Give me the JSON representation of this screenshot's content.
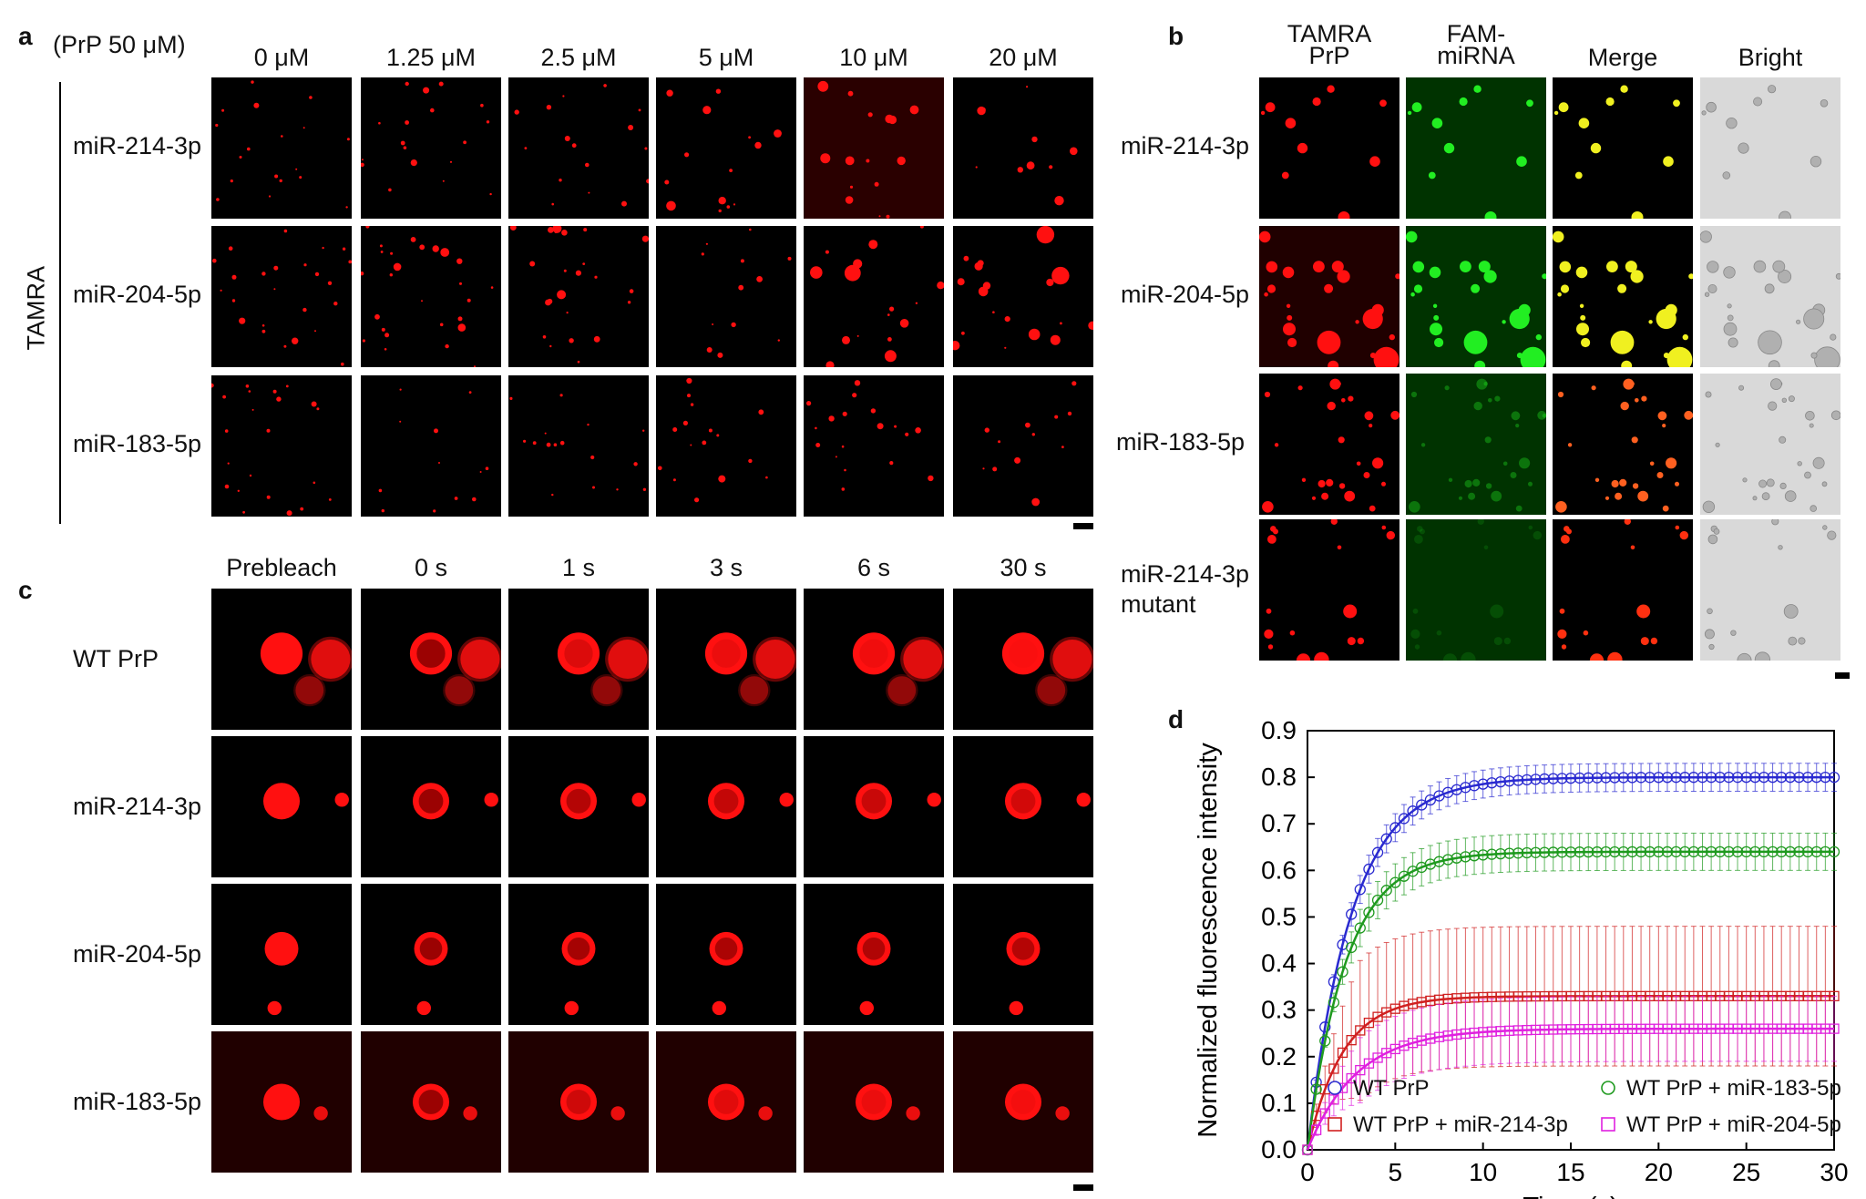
{
  "panel_a": {
    "label": "a",
    "condition": "(PrP 50 μM)",
    "side_label": "TAMRA",
    "columns": [
      "0 μM",
      "1.25 μM",
      "2.5 μM",
      "5 μM",
      "10 μM",
      "20 μM"
    ],
    "rows": [
      "miR-214-3p",
      "miR-204-5p",
      "miR-183-5p"
    ]
  },
  "panel_b": {
    "label": "b",
    "columns": [
      {
        "line1": "TAMRA",
        "line2": "PrP"
      },
      {
        "line1": "FAM-",
        "line2": "miRNA"
      },
      {
        "line1": "Merge",
        "line2": ""
      },
      {
        "line1": "Bright",
        "line2": ""
      }
    ],
    "rows": [
      {
        "line1": "miR-214-3p",
        "line2": ""
      },
      {
        "line1": "miR-204-5p",
        "line2": ""
      },
      {
        "line1": "miR-183-5p",
        "line2": ""
      },
      {
        "line1": "miR-214-3p",
        "line2": "mutant"
      }
    ]
  },
  "panel_c": {
    "label": "c",
    "columns": [
      "Prebleach",
      "0 s",
      "1 s",
      "3 s",
      "6 s",
      "30 s"
    ],
    "rows": [
      "WT PrP",
      "miR-214-3p",
      "miR-204-5p",
      "miR-183-5p"
    ]
  },
  "panel_d": {
    "label": "d"
  },
  "colors": {
    "droplet_red": "#ff1010",
    "fam_green": "#22ee22",
    "merge_yellow": "#f0f020",
    "bright_bg": "#d9d9d9",
    "series_blue": "#2a2ad0",
    "series_red": "#d02020",
    "series_green": "#1f9a1f",
    "series_magenta": "#e020e0"
  },
  "chart_data": {
    "type": "line",
    "title": "",
    "xlabel": "Time (s)",
    "ylabel": "Normalized fluorescence intensity",
    "xlim": [
      0,
      30
    ],
    "ylim": [
      0,
      0.9
    ],
    "xticks": [
      "0",
      "5",
      "10",
      "15",
      "20",
      "25",
      "30"
    ],
    "yticks": [
      "0.0",
      "0.1",
      "0.2",
      "0.3",
      "0.4",
      "0.5",
      "0.6",
      "0.7",
      "0.8",
      "0.9"
    ],
    "legend_position": "bottom",
    "series": [
      {
        "name": "WT PrP",
        "marker": "circle",
        "color": "#2a2ad0",
        "plateau": 0.8,
        "tau": 2.5,
        "error": 0.03
      },
      {
        "name": "WT PrP + miR-214-3p",
        "marker": "square",
        "color": "#d02020",
        "plateau": 0.33,
        "tau": 2.0,
        "error": 0.15
      },
      {
        "name": "WT PrP + miR-183-5p",
        "marker": "circle",
        "color": "#1f9a1f",
        "plateau": 0.64,
        "tau": 2.2,
        "error": 0.04
      },
      {
        "name": "WT PrP + miR-204-5p",
        "marker": "square",
        "color": "#e020e0",
        "plateau": 0.26,
        "tau": 2.8,
        "error": 0.07
      }
    ]
  }
}
